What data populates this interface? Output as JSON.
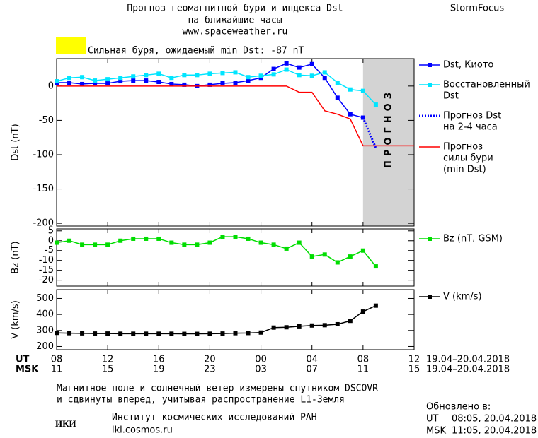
{
  "header": {
    "title": [
      "Прогноз геомагнитной бури и индекса Dst",
      "на ближайшие часы"
    ],
    "url": "www.spaceweather.ru",
    "brand": "StormFocus",
    "status_color": "#ffff00",
    "status": "Сильная буря, ожидаемый min Dst: -87 nT"
  },
  "chart_data": [
    {
      "type": "line",
      "ylabel": "Dst (nT)",
      "xlim": [
        0,
        28
      ],
      "ylim": [
        -204,
        40
      ],
      "yticks": [
        0,
        -50,
        -100,
        -150,
        -200
      ],
      "forecast_region": {
        "xlim": [
          24,
          28
        ],
        "label": "ПРОГНОЗ",
        "color": "#d3d3d3"
      },
      "series": [
        {
          "name": [
            "Dst, Киото"
          ],
          "color": "#0000ff",
          "marker": "square",
          "dash": "solid",
          "x": [
            0,
            1,
            2,
            3,
            4,
            5,
            6,
            7,
            8,
            9,
            10,
            11,
            12,
            13,
            14,
            15,
            16,
            17,
            18,
            19,
            20,
            21,
            22,
            23,
            24
          ],
          "values": [
            5,
            5,
            3,
            4,
            4,
            7,
            8,
            8,
            6,
            3,
            2,
            0,
            2,
            4,
            5,
            8,
            12,
            25,
            33,
            27,
            32,
            12,
            -17,
            -41,
            -46
          ]
        },
        {
          "name": [
            "Восстановленный",
            "Dst"
          ],
          "color": "#00e5ff",
          "marker": "square",
          "dash": "solid",
          "x": [
            0,
            1,
            2,
            3,
            4,
            5,
            6,
            7,
            8,
            9,
            10,
            11,
            12,
            13,
            14,
            15,
            16,
            17,
            18,
            19,
            20,
            21,
            22,
            23,
            24,
            25
          ],
          "values": [
            7,
            12,
            13,
            8,
            10,
            12,
            14,
            16,
            18,
            12,
            16,
            16,
            18,
            19,
            20,
            13,
            15,
            17,
            24,
            16,
            15,
            20,
            5,
            -5,
            -7,
            -27
          ]
        },
        {
          "name": [
            "Прогноз Dst",
            "на 2-4 часа"
          ],
          "color": "#0000ff",
          "marker": "none",
          "dash": "dotted",
          "x": [
            24,
            25
          ],
          "values": [
            -46,
            -90
          ]
        },
        {
          "name": [
            "Прогноз",
            "силы бури",
            "(min Dst)"
          ],
          "color": "#ff0000",
          "marker": "none",
          "dash": "solid",
          "x": [
            0,
            18,
            19,
            20,
            21,
            22,
            23,
            24,
            28
          ],
          "values": [
            0,
            0,
            -9,
            -9,
            -36,
            -41,
            -48,
            -87,
            -87
          ]
        }
      ]
    },
    {
      "type": "line",
      "ylabel": "Bz (nT)",
      "xlim": [
        0,
        28
      ],
      "ylim": [
        -23,
        6
      ],
      "yticks": [
        5,
        0,
        -5,
        -10,
        -15,
        -20
      ],
      "series": [
        {
          "name": [
            "Bz (nT, GSM)"
          ],
          "color": "#00dd00",
          "marker": "square",
          "dash": "solid",
          "x": [
            0,
            1,
            2,
            3,
            4,
            5,
            6,
            7,
            8,
            9,
            10,
            11,
            12,
            13,
            14,
            15,
            16,
            17,
            18,
            19,
            20,
            21,
            22,
            23,
            24,
            25
          ],
          "values": [
            -1,
            0,
            -2,
            -2,
            -2,
            0,
            1,
            1,
            1,
            -1,
            -2,
            -2,
            -1,
            2,
            2,
            1,
            -1,
            -2,
            -4,
            -1,
            -8,
            -7,
            -11,
            -8,
            -5,
            -13
          ]
        }
      ]
    },
    {
      "type": "line",
      "ylabel": "V (km/s)",
      "xlim": [
        0,
        28
      ],
      "ylim": [
        180,
        555
      ],
      "yticks": [
        500,
        400,
        300,
        200
      ],
      "xlabel": "UT",
      "x2label": "MSK",
      "xrange_label": "19.04–20.04.2018",
      "x2range_label": "19.04–20.04.2018",
      "xticks": [
        {
          "value": 0,
          "label": "08"
        },
        {
          "value": 4,
          "label": "12"
        },
        {
          "value": 8,
          "label": "16"
        },
        {
          "value": 12,
          "label": "20"
        },
        {
          "value": 16,
          "label": "00"
        },
        {
          "value": 20,
          "label": "04"
        },
        {
          "value": 24,
          "label": "08"
        },
        {
          "value": 28,
          "label": "12"
        }
      ],
      "x2ticks": [
        {
          "value": 0,
          "label": "11"
        },
        {
          "value": 4,
          "label": "15"
        },
        {
          "value": 8,
          "label": "19"
        },
        {
          "value": 12,
          "label": "23"
        },
        {
          "value": 16,
          "label": "03"
        },
        {
          "value": 20,
          "label": "07"
        },
        {
          "value": 24,
          "label": "11"
        },
        {
          "value": 28,
          "label": "15"
        }
      ],
      "series": [
        {
          "name": [
            "V (km/s)"
          ],
          "color": "#000000",
          "marker": "square",
          "dash": "solid",
          "x": [
            0,
            1,
            2,
            3,
            4,
            5,
            6,
            7,
            8,
            9,
            10,
            11,
            12,
            13,
            14,
            15,
            16,
            17,
            18,
            19,
            20,
            21,
            22,
            23,
            24,
            25
          ],
          "values": [
            285,
            283,
            282,
            281,
            281,
            280,
            280,
            280,
            280,
            280,
            279,
            279,
            280,
            281,
            283,
            284,
            287,
            318,
            320,
            326,
            331,
            333,
            339,
            360,
            418,
            455
          ]
        }
      ]
    }
  ],
  "footer": {
    "note": [
      "Магнитное поле и солнечный ветер измерены спутником DSCOVR",
      "и сдвинуты вперед, учитывая распространение L1-Земля"
    ],
    "updated_title": "Обновлено в:",
    "updated": [
      {
        "zone": "UT",
        "time": "08:05, 20.04.2018"
      },
      {
        "zone": "MSK",
        "time": "11:05, 20.04.2018"
      }
    ],
    "logo": "ИКИ",
    "institute": "Институт космических исследований РАН",
    "site": "iki.cosmos.ru"
  }
}
